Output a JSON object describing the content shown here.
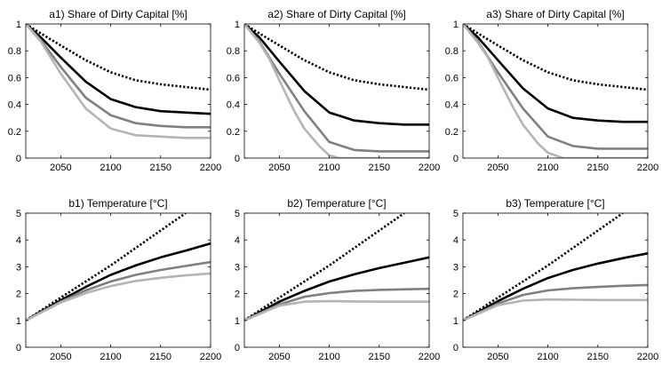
{
  "colors": {
    "black": "#000000",
    "dark_gray": "#808080",
    "light_gray": "#b4b4b4"
  },
  "chart_data": [
    {
      "type": "line",
      "title": "a1) Share of Dirty Capital [%]",
      "xlabel": "",
      "ylabel": "",
      "xlim": [
        2015,
        2200
      ],
      "ylim": [
        0,
        1
      ],
      "xticks": [
        2050,
        2100,
        2150,
        2200
      ],
      "yticks": [
        0,
        0.2,
        0.4,
        0.6,
        0.8,
        1
      ],
      "ytick_labels": [
        "0",
        "0.2",
        "0.4",
        "0.6",
        "0.8",
        "1"
      ],
      "grid": false,
      "series": [
        {
          "style": "dotted",
          "color": "#000000",
          "x": [
            2015,
            2030,
            2050,
            2075,
            2100,
            2125,
            2150,
            2175,
            2200
          ],
          "y": [
            1.0,
            0.93,
            0.84,
            0.73,
            0.64,
            0.58,
            0.55,
            0.53,
            0.51
          ]
        },
        {
          "style": "solid",
          "color": "#000000",
          "x": [
            2015,
            2030,
            2050,
            2075,
            2100,
            2125,
            2150,
            2175,
            2200
          ],
          "y": [
            1.0,
            0.9,
            0.75,
            0.57,
            0.44,
            0.38,
            0.35,
            0.34,
            0.33
          ]
        },
        {
          "style": "solid",
          "color": "#808080",
          "x": [
            2015,
            2030,
            2050,
            2075,
            2100,
            2125,
            2150,
            2175,
            2200
          ],
          "y": [
            1.0,
            0.88,
            0.68,
            0.45,
            0.32,
            0.26,
            0.24,
            0.23,
            0.23
          ]
        },
        {
          "style": "solid",
          "color": "#b4b4b4",
          "x": [
            2015,
            2030,
            2050,
            2075,
            2100,
            2125,
            2150,
            2175,
            2200
          ],
          "y": [
            1.0,
            0.87,
            0.63,
            0.37,
            0.22,
            0.17,
            0.16,
            0.15,
            0.15
          ]
        }
      ]
    },
    {
      "type": "line",
      "title": "a2) Share of Dirty Capital [%]",
      "xlabel": "",
      "ylabel": "",
      "xlim": [
        2015,
        2200
      ],
      "ylim": [
        0,
        1
      ],
      "xticks": [
        2050,
        2100,
        2150,
        2200
      ],
      "yticks": [
        0,
        0.2,
        0.4,
        0.6,
        0.8,
        1
      ],
      "ytick_labels": [
        "0",
        "0.2",
        "0.4",
        "0.6",
        "0.8",
        "1"
      ],
      "grid": false,
      "series": [
        {
          "style": "dotted",
          "color": "#000000",
          "x": [
            2015,
            2030,
            2050,
            2075,
            2100,
            2125,
            2150,
            2175,
            2200
          ],
          "y": [
            1.0,
            0.93,
            0.84,
            0.73,
            0.64,
            0.58,
            0.55,
            0.53,
            0.51
          ]
        },
        {
          "style": "solid",
          "color": "#000000",
          "x": [
            2015,
            2030,
            2050,
            2075,
            2100,
            2125,
            2150,
            2175,
            2200
          ],
          "y": [
            1.0,
            0.9,
            0.72,
            0.5,
            0.34,
            0.28,
            0.26,
            0.25,
            0.25
          ]
        },
        {
          "style": "solid",
          "color": "#808080",
          "x": [
            2015,
            2030,
            2050,
            2075,
            2100,
            2125,
            2150,
            2175,
            2200
          ],
          "y": [
            1.0,
            0.87,
            0.63,
            0.35,
            0.12,
            0.06,
            0.05,
            0.05,
            0.05
          ]
        },
        {
          "style": "solid",
          "color": "#b4b4b4",
          "x": [
            2015,
            2030,
            2040,
            2050,
            2065,
            2075,
            2090,
            2100,
            2110,
            2150,
            2200
          ],
          "y": [
            1.0,
            0.86,
            0.74,
            0.58,
            0.35,
            0.22,
            0.09,
            0.02,
            0.0,
            0.0,
            0.0
          ]
        }
      ]
    },
    {
      "type": "line",
      "title": "a3) Share of Dirty Capital [%]",
      "xlabel": "",
      "ylabel": "",
      "xlim": [
        2015,
        2200
      ],
      "ylim": [
        0,
        1
      ],
      "xticks": [
        2050,
        2100,
        2150,
        2200
      ],
      "yticks": [
        0,
        0.2,
        0.4,
        0.6,
        0.8,
        1
      ],
      "ytick_labels": [
        "0",
        "0.2",
        "0.4",
        "0.6",
        "0.8",
        "1"
      ],
      "grid": false,
      "series": [
        {
          "style": "dotted",
          "color": "#000000",
          "x": [
            2015,
            2030,
            2050,
            2075,
            2100,
            2125,
            2150,
            2175,
            2200
          ],
          "y": [
            1.0,
            0.93,
            0.84,
            0.73,
            0.64,
            0.58,
            0.55,
            0.53,
            0.51
          ]
        },
        {
          "style": "solid",
          "color": "#000000",
          "x": [
            2015,
            2030,
            2050,
            2075,
            2100,
            2125,
            2150,
            2175,
            2200
          ],
          "y": [
            1.0,
            0.9,
            0.73,
            0.52,
            0.37,
            0.3,
            0.28,
            0.27,
            0.27
          ]
        },
        {
          "style": "solid",
          "color": "#808080",
          "x": [
            2015,
            2030,
            2050,
            2075,
            2100,
            2125,
            2150,
            2175,
            2200
          ],
          "y": [
            1.0,
            0.87,
            0.64,
            0.37,
            0.16,
            0.09,
            0.07,
            0.07,
            0.07
          ]
        },
        {
          "style": "solid",
          "color": "#b4b4b4",
          "x": [
            2015,
            2030,
            2040,
            2050,
            2065,
            2075,
            2090,
            2100,
            2115,
            2150,
            2200
          ],
          "y": [
            1.0,
            0.86,
            0.75,
            0.6,
            0.38,
            0.25,
            0.11,
            0.04,
            0.0,
            0.0,
            0.0
          ]
        }
      ]
    },
    {
      "type": "line",
      "title": "b1) Temperature [°C]",
      "xlabel": "",
      "ylabel": "",
      "xlim": [
        2015,
        2200
      ],
      "ylim": [
        0,
        5
      ],
      "xticks": [
        2050,
        2100,
        2150,
        2200
      ],
      "yticks": [
        0,
        1,
        2,
        3,
        4,
        5
      ],
      "ytick_labels": [
        "0",
        "1",
        "2",
        "3",
        "4",
        "5"
      ],
      "grid": false,
      "series": [
        {
          "style": "dotted",
          "color": "#000000",
          "x": [
            2015,
            2050,
            2100,
            2150,
            2175
          ],
          "y": [
            1.0,
            1.85,
            3.05,
            4.35,
            5.0
          ]
        },
        {
          "style": "solid",
          "color": "#000000",
          "x": [
            2015,
            2050,
            2075,
            2100,
            2125,
            2150,
            2175,
            2200
          ],
          "y": [
            1.0,
            1.75,
            2.25,
            2.7,
            3.05,
            3.35,
            3.6,
            3.87
          ]
        },
        {
          "style": "solid",
          "color": "#808080",
          "x": [
            2015,
            2050,
            2075,
            2100,
            2125,
            2150,
            2175,
            2200
          ],
          "y": [
            1.0,
            1.7,
            2.12,
            2.45,
            2.7,
            2.88,
            3.03,
            3.18
          ]
        },
        {
          "style": "solid",
          "color": "#b4b4b4",
          "x": [
            2015,
            2050,
            2075,
            2100,
            2125,
            2150,
            2175,
            2200
          ],
          "y": [
            1.0,
            1.67,
            2.02,
            2.28,
            2.47,
            2.59,
            2.68,
            2.75
          ]
        }
      ]
    },
    {
      "type": "line",
      "title": "b2) Temperature [°C]",
      "xlabel": "",
      "ylabel": "",
      "xlim": [
        2015,
        2200
      ],
      "ylim": [
        0,
        5
      ],
      "xticks": [
        2050,
        2100,
        2150,
        2200
      ],
      "yticks": [
        0,
        1,
        2,
        3,
        4,
        5
      ],
      "ytick_labels": [
        "0",
        "1",
        "2",
        "3",
        "4",
        "5"
      ],
      "grid": false,
      "series": [
        {
          "style": "dotted",
          "color": "#000000",
          "x": [
            2015,
            2050,
            2100,
            2150,
            2175
          ],
          "y": [
            1.0,
            1.85,
            3.05,
            4.35,
            5.0
          ]
        },
        {
          "style": "solid",
          "color": "#000000",
          "x": [
            2015,
            2050,
            2075,
            2100,
            2125,
            2150,
            2175,
            2200
          ],
          "y": [
            1.0,
            1.7,
            2.1,
            2.45,
            2.72,
            2.95,
            3.15,
            3.35
          ]
        },
        {
          "style": "solid",
          "color": "#808080",
          "x": [
            2015,
            2050,
            2075,
            2100,
            2125,
            2150,
            2175,
            2200
          ],
          "y": [
            1.0,
            1.6,
            1.88,
            2.02,
            2.1,
            2.14,
            2.16,
            2.18
          ]
        },
        {
          "style": "solid",
          "color": "#b4b4b4",
          "x": [
            2015,
            2050,
            2075,
            2100,
            2125,
            2150,
            2175,
            2200
          ],
          "y": [
            1.0,
            1.55,
            1.7,
            1.72,
            1.71,
            1.7,
            1.7,
            1.7
          ]
        }
      ]
    },
    {
      "type": "line",
      "title": "b3) Temperature [°C]",
      "xlabel": "",
      "ylabel": "",
      "xlim": [
        2015,
        2200
      ],
      "ylim": [
        0,
        5
      ],
      "xticks": [
        2050,
        2100,
        2150,
        2200
      ],
      "yticks": [
        0,
        1,
        2,
        3,
        4,
        5
      ],
      "ytick_labels": [
        "0",
        "1",
        "2",
        "3",
        "4",
        "5"
      ],
      "grid": false,
      "series": [
        {
          "style": "dotted",
          "color": "#000000",
          "x": [
            2015,
            2050,
            2100,
            2150,
            2175
          ],
          "y": [
            1.0,
            1.85,
            3.05,
            4.35,
            5.0
          ]
        },
        {
          "style": "solid",
          "color": "#000000",
          "x": [
            2015,
            2050,
            2075,
            2100,
            2125,
            2150,
            2175,
            2200
          ],
          "y": [
            1.0,
            1.72,
            2.18,
            2.58,
            2.88,
            3.12,
            3.32,
            3.5
          ]
        },
        {
          "style": "solid",
          "color": "#808080",
          "x": [
            2015,
            2050,
            2075,
            2100,
            2125,
            2150,
            2175,
            2200
          ],
          "y": [
            1.0,
            1.63,
            1.95,
            2.12,
            2.2,
            2.25,
            2.29,
            2.32
          ]
        },
        {
          "style": "solid",
          "color": "#b4b4b4",
          "x": [
            2015,
            2050,
            2075,
            2100,
            2125,
            2150,
            2175,
            2200
          ],
          "y": [
            1.0,
            1.57,
            1.74,
            1.78,
            1.77,
            1.76,
            1.76,
            1.76
          ]
        }
      ]
    }
  ]
}
